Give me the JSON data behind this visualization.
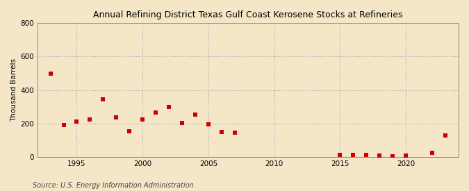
{
  "title": "Annual Refining District Texas Gulf Coast Kerosene Stocks at Refineries",
  "ylabel": "Thousand Barrels",
  "source": "Source: U.S. Energy Information Administration",
  "background_color": "#f5e6c8",
  "plot_background_color": "#f5e6c8",
  "marker_color": "#cc0000",
  "marker": "s",
  "marker_size": 4,
  "xlim": [
    1992,
    2024
  ],
  "ylim": [
    0,
    800
  ],
  "yticks": [
    0,
    200,
    400,
    600,
    800
  ],
  "xticks": [
    1995,
    2000,
    2005,
    2010,
    2015,
    2020
  ],
  "years": [
    1993,
    1994,
    1995,
    1996,
    1997,
    1998,
    1999,
    2000,
    2001,
    2002,
    2003,
    2004,
    2005,
    2006,
    2007,
    2015,
    2016,
    2017,
    2018,
    2019,
    2020,
    2022,
    2023
  ],
  "values": [
    500,
    190,
    210,
    225,
    345,
    235,
    155,
    225,
    265,
    300,
    205,
    255,
    195,
    150,
    145,
    10,
    12,
    10,
    8,
    5,
    8,
    25,
    130
  ]
}
